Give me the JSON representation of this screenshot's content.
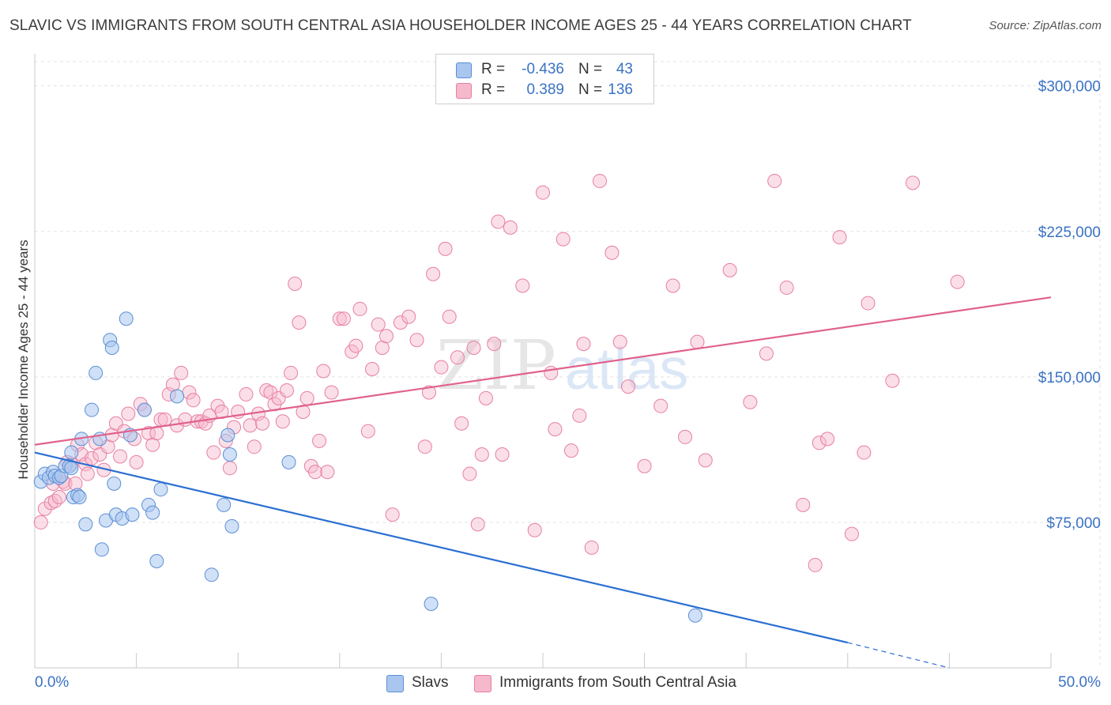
{
  "title": "SLAVIC VS IMMIGRANTS FROM SOUTH CENTRAL ASIA HOUSEHOLDER INCOME AGES 25 - 44 YEARS CORRELATION CHART",
  "source": "Source: ZipAtlas.com",
  "watermark": {
    "part1": "ZIP",
    "part2": "atlas"
  },
  "legend": {
    "rows": [
      {
        "r_label": "R =",
        "r_value": "-0.436",
        "n_label": "N =",
        "n_value": "43"
      },
      {
        "r_label": "R =",
        "r_value": "0.389",
        "n_label": "N =",
        "n_value": "136"
      }
    ]
  },
  "bottom_legend": {
    "items": [
      "Slavs",
      "Immigrants from South Central Asia"
    ]
  },
  "colors": {
    "blue_fill": "#a9c6ef",
    "blue_stroke": "#5b8fd6",
    "blue_line": "#2a6fd2",
    "pink_fill": "#f6b8cb",
    "pink_stroke": "#e77fa0",
    "pink_line": "#e0628c",
    "tick_text": "#3a72c4",
    "grid": "#e3e3e3"
  },
  "chart_data": {
    "type": "scatter",
    "title": "SLAVIC VS IMMIGRANTS FROM SOUTH CENTRAL ASIA HOUSEHOLDER INCOME AGES 25 - 44 YEARS CORRELATION CHART",
    "xlabel": "",
    "ylabel": "Householder Income Ages 25 - 44 years",
    "xlim": [
      0,
      50
    ],
    "ylim": [
      0,
      312500
    ],
    "x_tick_labels": [
      "0.0%",
      "50.0%"
    ],
    "y_ticks": [
      75000,
      150000,
      225000,
      300000
    ],
    "y_tick_labels": [
      "$75,000",
      "$150,000",
      "$225,000",
      "$300,000"
    ],
    "grid": true,
    "legend_position": "top-center",
    "series": [
      {
        "name": "Slavs",
        "r": -0.436,
        "n": 43,
        "trend": {
          "x": [
            0,
            40,
            45
          ],
          "y": [
            111000,
            13000,
            0
          ],
          "dashed_from_x": 40
        },
        "points": [
          [
            0.3,
            96000
          ],
          [
            0.5,
            100000
          ],
          [
            0.7,
            98000
          ],
          [
            0.9,
            101000
          ],
          [
            1.0,
            99000
          ],
          [
            1.2,
            98000
          ],
          [
            1.3,
            99000
          ],
          [
            1.5,
            104000
          ],
          [
            1.7,
            104000
          ],
          [
            1.8,
            103000
          ],
          [
            1.8,
            111000
          ],
          [
            1.9,
            88000
          ],
          [
            2.1,
            89000
          ],
          [
            2.2,
            88000
          ],
          [
            2.3,
            118000
          ],
          [
            2.5,
            74000
          ],
          [
            2.8,
            133000
          ],
          [
            3.0,
            152000
          ],
          [
            3.2,
            118000
          ],
          [
            3.3,
            61000
          ],
          [
            3.5,
            76000
          ],
          [
            3.7,
            169000
          ],
          [
            3.8,
            165000
          ],
          [
            3.9,
            95000
          ],
          [
            4.0,
            79000
          ],
          [
            4.3,
            77000
          ],
          [
            4.5,
            180000
          ],
          [
            4.7,
            120000
          ],
          [
            4.8,
            79000
          ],
          [
            5.4,
            133000
          ],
          [
            5.6,
            84000
          ],
          [
            5.8,
            80000
          ],
          [
            6.0,
            55000
          ],
          [
            6.2,
            92000
          ],
          [
            7.0,
            140000
          ],
          [
            8.7,
            48000
          ],
          [
            9.3,
            84000
          ],
          [
            9.5,
            120000
          ],
          [
            9.6,
            110000
          ],
          [
            9.7,
            73000
          ],
          [
            12.5,
            106000
          ],
          [
            19.5,
            33000
          ],
          [
            32.5,
            27000
          ]
        ]
      },
      {
        "name": "Immigrants from South Central Asia",
        "r": 0.389,
        "n": 136,
        "trend": {
          "x": [
            0,
            50
          ],
          "y": [
            115000,
            191000
          ]
        },
        "points": [
          [
            0.3,
            75000
          ],
          [
            0.5,
            82000
          ],
          [
            0.8,
            85000
          ],
          [
            1.0,
            86000
          ],
          [
            1.2,
            88000
          ],
          [
            1.4,
            96000
          ],
          [
            1.5,
            95000
          ],
          [
            1.6,
            106000
          ],
          [
            1.8,
            105000
          ],
          [
            2.0,
            95000
          ],
          [
            2.1,
            115000
          ],
          [
            2.3,
            110000
          ],
          [
            2.5,
            105000
          ],
          [
            2.6,
            100000
          ],
          [
            2.8,
            108000
          ],
          [
            3.0,
            116000
          ],
          [
            3.2,
            110000
          ],
          [
            3.4,
            102000
          ],
          [
            3.6,
            114000
          ],
          [
            3.8,
            120000
          ],
          [
            4.0,
            126000
          ],
          [
            4.2,
            109000
          ],
          [
            4.4,
            122000
          ],
          [
            4.6,
            131000
          ],
          [
            4.9,
            118000
          ],
          [
            5.0,
            106000
          ],
          [
            5.2,
            136000
          ],
          [
            5.4,
            133000
          ],
          [
            5.6,
            121000
          ],
          [
            5.8,
            115000
          ],
          [
            6.0,
            121000
          ],
          [
            6.2,
            128000
          ],
          [
            6.4,
            128000
          ],
          [
            6.6,
            141000
          ],
          [
            6.8,
            146000
          ],
          [
            7.0,
            125000
          ],
          [
            7.2,
            152000
          ],
          [
            7.4,
            128000
          ],
          [
            7.6,
            142000
          ],
          [
            7.8,
            138000
          ],
          [
            8.0,
            127000
          ],
          [
            8.2,
            127000
          ],
          [
            8.4,
            126000
          ],
          [
            8.6,
            130000
          ],
          [
            8.8,
            111000
          ],
          [
            9.0,
            135000
          ],
          [
            9.2,
            132000
          ],
          [
            9.4,
            117000
          ],
          [
            9.6,
            103000
          ],
          [
            9.8,
            124000
          ],
          [
            10.0,
            132000
          ],
          [
            10.4,
            141000
          ],
          [
            10.6,
            125000
          ],
          [
            10.8,
            114000
          ],
          [
            11.0,
            131000
          ],
          [
            11.2,
            126000
          ],
          [
            11.4,
            143000
          ],
          [
            11.6,
            142000
          ],
          [
            11.8,
            136000
          ],
          [
            12.0,
            139000
          ],
          [
            12.2,
            127000
          ],
          [
            12.4,
            143000
          ],
          [
            12.6,
            152000
          ],
          [
            12.8,
            198000
          ],
          [
            13.0,
            178000
          ],
          [
            13.2,
            132000
          ],
          [
            13.4,
            139000
          ],
          [
            13.6,
            104000
          ],
          [
            13.8,
            101000
          ],
          [
            14.0,
            117000
          ],
          [
            14.2,
            153000
          ],
          [
            14.4,
            101000
          ],
          [
            14.6,
            142000
          ],
          [
            15.0,
            180000
          ],
          [
            15.2,
            180000
          ],
          [
            15.6,
            163000
          ],
          [
            15.8,
            166000
          ],
          [
            16.0,
            185000
          ],
          [
            16.4,
            122000
          ],
          [
            16.6,
            154000
          ],
          [
            16.9,
            177000
          ],
          [
            17.1,
            165000
          ],
          [
            17.3,
            171000
          ],
          [
            17.6,
            79000
          ],
          [
            18.0,
            178000
          ],
          [
            18.4,
            181000
          ],
          [
            18.8,
            169000
          ],
          [
            19.2,
            114000
          ],
          [
            19.4,
            142000
          ],
          [
            19.6,
            203000
          ],
          [
            20.0,
            155000
          ],
          [
            20.2,
            216000
          ],
          [
            20.4,
            181000
          ],
          [
            20.8,
            160000
          ],
          [
            21.0,
            126000
          ],
          [
            21.4,
            100000
          ],
          [
            21.6,
            165000
          ],
          [
            21.8,
            74000
          ],
          [
            22.0,
            110000
          ],
          [
            22.2,
            139000
          ],
          [
            22.6,
            167000
          ],
          [
            22.8,
            230000
          ],
          [
            23.0,
            110000
          ],
          [
            23.4,
            227000
          ],
          [
            24.0,
            197000
          ],
          [
            24.6,
            71000
          ],
          [
            25.0,
            245000
          ],
          [
            25.4,
            152000
          ],
          [
            25.6,
            123000
          ],
          [
            26.0,
            221000
          ],
          [
            26.4,
            112000
          ],
          [
            26.8,
            130000
          ],
          [
            27.0,
            167000
          ],
          [
            27.4,
            62000
          ],
          [
            27.8,
            251000
          ],
          [
            28.4,
            214000
          ],
          [
            28.8,
            168000
          ],
          [
            29.2,
            145000
          ],
          [
            30.0,
            104000
          ],
          [
            30.8,
            135000
          ],
          [
            31.4,
            197000
          ],
          [
            32.0,
            119000
          ],
          [
            32.6,
            168000
          ],
          [
            33.0,
            107000
          ],
          [
            34.2,
            205000
          ],
          [
            35.2,
            137000
          ],
          [
            36.0,
            162000
          ],
          [
            36.4,
            251000
          ],
          [
            37.0,
            196000
          ],
          [
            37.8,
            84000
          ],
          [
            38.4,
            53000
          ],
          [
            38.6,
            116000
          ],
          [
            39.0,
            118000
          ],
          [
            39.6,
            222000
          ],
          [
            40.2,
            69000
          ],
          [
            40.8,
            111000
          ],
          [
            41.0,
            188000
          ],
          [
            42.2,
            148000
          ],
          [
            43.2,
            250000
          ],
          [
            45.4,
            199000
          ],
          [
            0.9,
            95000
          ]
        ]
      }
    ]
  }
}
